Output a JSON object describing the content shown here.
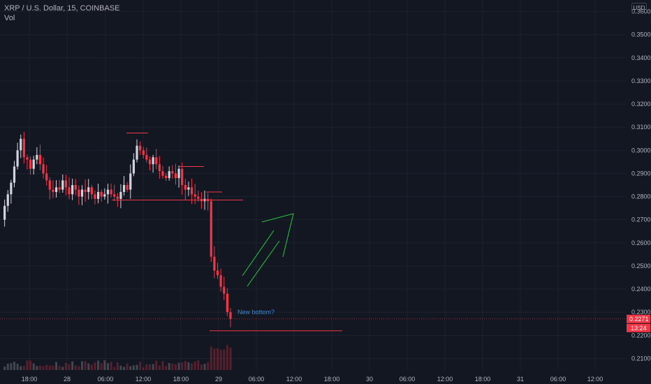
{
  "header": {
    "symbol_line": "XRP / U.S. Dollar, 15, COINBASE",
    "indicator": "Vol"
  },
  "currency_button": "USD",
  "annotation": {
    "text": "New bottom?",
    "color": "#2f8ae0"
  },
  "price_tag": {
    "value": "0.2271",
    "countdown": "13:24",
    "color": "#f23645"
  },
  "colors": {
    "up": "#d1d4dc",
    "down": "#f23645",
    "background": "#131722",
    "grid": "#1e2230",
    "drawing_red": "#f23645",
    "drawing_green": "#26c93a"
  },
  "chart_data": {
    "type": "candlestick",
    "symbol": "XRP / U.S. Dollar",
    "interval": "15",
    "exchange": "COINBASE",
    "ylim": [
      0.205,
      0.365
    ],
    "y_ticks": [
      "0.3600",
      "0.3500",
      "0.3400",
      "0.3300",
      "0.3200",
      "0.3100",
      "0.3000",
      "0.2900",
      "0.2800",
      "0.2700",
      "0.2600",
      "0.2500",
      "0.2400",
      "0.2300",
      "0.2200",
      "0.2100"
    ],
    "x_ticks": [
      "18:00",
      "28",
      "06:00",
      "12:00",
      "18:00",
      "29",
      "06:00",
      "12:00",
      "18:00",
      "30",
      "06:00",
      "12:00",
      "18:00",
      "31",
      "06:00",
      "12:00"
    ],
    "levels": {
      "resistance_lines": [
        0.3075,
        0.293,
        0.282
      ],
      "support_line": 0.2785,
      "new_bottom_line": 0.222,
      "last_price": 0.2271
    },
    "price_path": [
      0.27,
      0.276,
      0.281,
      0.286,
      0.293,
      0.3,
      0.305,
      0.297,
      0.296,
      0.292,
      0.296,
      0.298,
      0.294,
      0.29,
      0.287,
      0.283,
      0.282,
      0.284,
      0.283,
      0.287,
      0.284,
      0.281,
      0.285,
      0.283,
      0.28,
      0.283,
      0.282,
      0.284,
      0.281,
      0.279,
      0.282,
      0.28,
      0.281,
      0.283,
      0.281,
      0.28,
      0.279,
      0.282,
      0.285,
      0.283,
      0.29,
      0.296,
      0.302,
      0.3,
      0.298,
      0.296,
      0.294,
      0.297,
      0.294,
      0.291,
      0.289,
      0.288,
      0.291,
      0.29,
      0.288,
      0.292,
      0.285,
      0.283,
      0.284,
      0.281,
      0.28,
      0.279,
      0.278,
      0.279,
      0.278,
      0.254,
      0.248,
      0.246,
      0.241,
      0.238,
      0.23,
      0.2271
    ]
  }
}
